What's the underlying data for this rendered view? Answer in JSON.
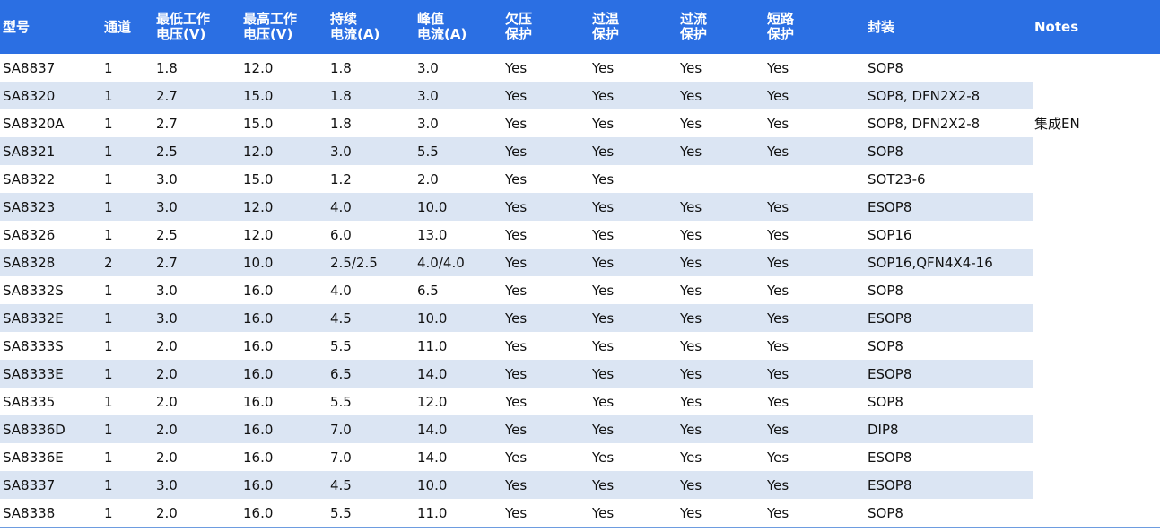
{
  "table": {
    "headers": [
      {
        "line1": "型号",
        "line2": ""
      },
      {
        "line1": "通道",
        "line2": ""
      },
      {
        "line1": "最低工作",
        "line2": "电压(V)"
      },
      {
        "line1": "最高工作",
        "line2": "电压(V)"
      },
      {
        "line1": "持续",
        "line2": "电流(A)"
      },
      {
        "line1": "峰值",
        "line2": "电流(A)"
      },
      {
        "line1": "欠压",
        "line2": "保护"
      },
      {
        "line1": "过温",
        "line2": "保护"
      },
      {
        "line1": "过流",
        "line2": "保护"
      },
      {
        "line1": "短路",
        "line2": "保护"
      },
      {
        "line1": "封装",
        "line2": ""
      },
      {
        "line1": "Notes",
        "line2": ""
      }
    ],
    "rows": [
      [
        "SA8837",
        "1",
        "1.8",
        "12.0",
        "1.8",
        "3.0",
        "Yes",
        "Yes",
        "Yes",
        "Yes",
        "SOP8",
        ""
      ],
      [
        "SA8320",
        "1",
        "2.7",
        "15.0",
        "1.8",
        "3.0",
        "Yes",
        "Yes",
        "Yes",
        "Yes",
        "SOP8, DFN2X2-8",
        ""
      ],
      [
        "SA8320A",
        "1",
        "2.7",
        "15.0",
        "1.8",
        "3.0",
        "Yes",
        "Yes",
        "Yes",
        "Yes",
        "SOP8, DFN2X2-8",
        "集成EN"
      ],
      [
        "SA8321",
        "1",
        "2.5",
        "12.0",
        "3.0",
        "5.5",
        "Yes",
        "Yes",
        "Yes",
        "Yes",
        "SOP8",
        ""
      ],
      [
        "SA8322",
        "1",
        "3.0",
        "15.0",
        "1.2",
        "2.0",
        "Yes",
        "Yes",
        "",
        "",
        "SOT23-6",
        ""
      ],
      [
        "SA8323",
        "1",
        "3.0",
        "12.0",
        "4.0",
        "10.0",
        "Yes",
        "Yes",
        "Yes",
        "Yes",
        "ESOP8",
        ""
      ],
      [
        "SA8326",
        "1",
        "2.5",
        "12.0",
        "6.0",
        "13.0",
        "Yes",
        "Yes",
        "Yes",
        "Yes",
        "SOP16",
        ""
      ],
      [
        "SA8328",
        "2",
        "2.7",
        "10.0",
        "2.5/2.5",
        "4.0/4.0",
        "Yes",
        "Yes",
        "Yes",
        "Yes",
        "SOP16,QFN4X4-16",
        ""
      ],
      [
        "SA8332S",
        "1",
        "3.0",
        "16.0",
        "4.0",
        "6.5",
        "Yes",
        "Yes",
        "Yes",
        "Yes",
        "SOP8",
        ""
      ],
      [
        "SA8332E",
        "1",
        "3.0",
        "16.0",
        "4.5",
        "10.0",
        "Yes",
        "Yes",
        "Yes",
        "Yes",
        "ESOP8",
        ""
      ],
      [
        "SA8333S",
        "1",
        "2.0",
        "16.0",
        "5.5",
        "11.0",
        "Yes",
        "Yes",
        "Yes",
        "Yes",
        "SOP8",
        ""
      ],
      [
        "SA8333E",
        "1",
        "2.0",
        "16.0",
        "6.5",
        "14.0",
        "Yes",
        "Yes",
        "Yes",
        "Yes",
        "ESOP8",
        ""
      ],
      [
        "SA8335",
        "1",
        "2.0",
        "16.0",
        "5.5",
        "12.0",
        "Yes",
        "Yes",
        "Yes",
        "Yes",
        "SOP8",
        ""
      ],
      [
        "SA8336D",
        "1",
        "2.0",
        "16.0",
        "7.0",
        "14.0",
        "Yes",
        "Yes",
        "Yes",
        "Yes",
        "DIP8",
        ""
      ],
      [
        "SA8336E",
        "1",
        "2.0",
        "16.0",
        "7.0",
        "14.0",
        "Yes",
        "Yes",
        "Yes",
        "Yes",
        "ESOP8",
        ""
      ],
      [
        "SA8337",
        "1",
        "3.0",
        "16.0",
        "4.5",
        "10.0",
        "Yes",
        "Yes",
        "Yes",
        "Yes",
        "ESOP8",
        ""
      ],
      [
        "SA8338",
        "1",
        "2.0",
        "16.0",
        "5.5",
        "11.0",
        "Yes",
        "Yes",
        "Yes",
        "Yes",
        "SOP8",
        ""
      ]
    ]
  },
  "colors": {
    "header_bg": "#2b6fe3",
    "stripe_bg": "#dbe5f3",
    "rule": "#6d9ce0"
  }
}
